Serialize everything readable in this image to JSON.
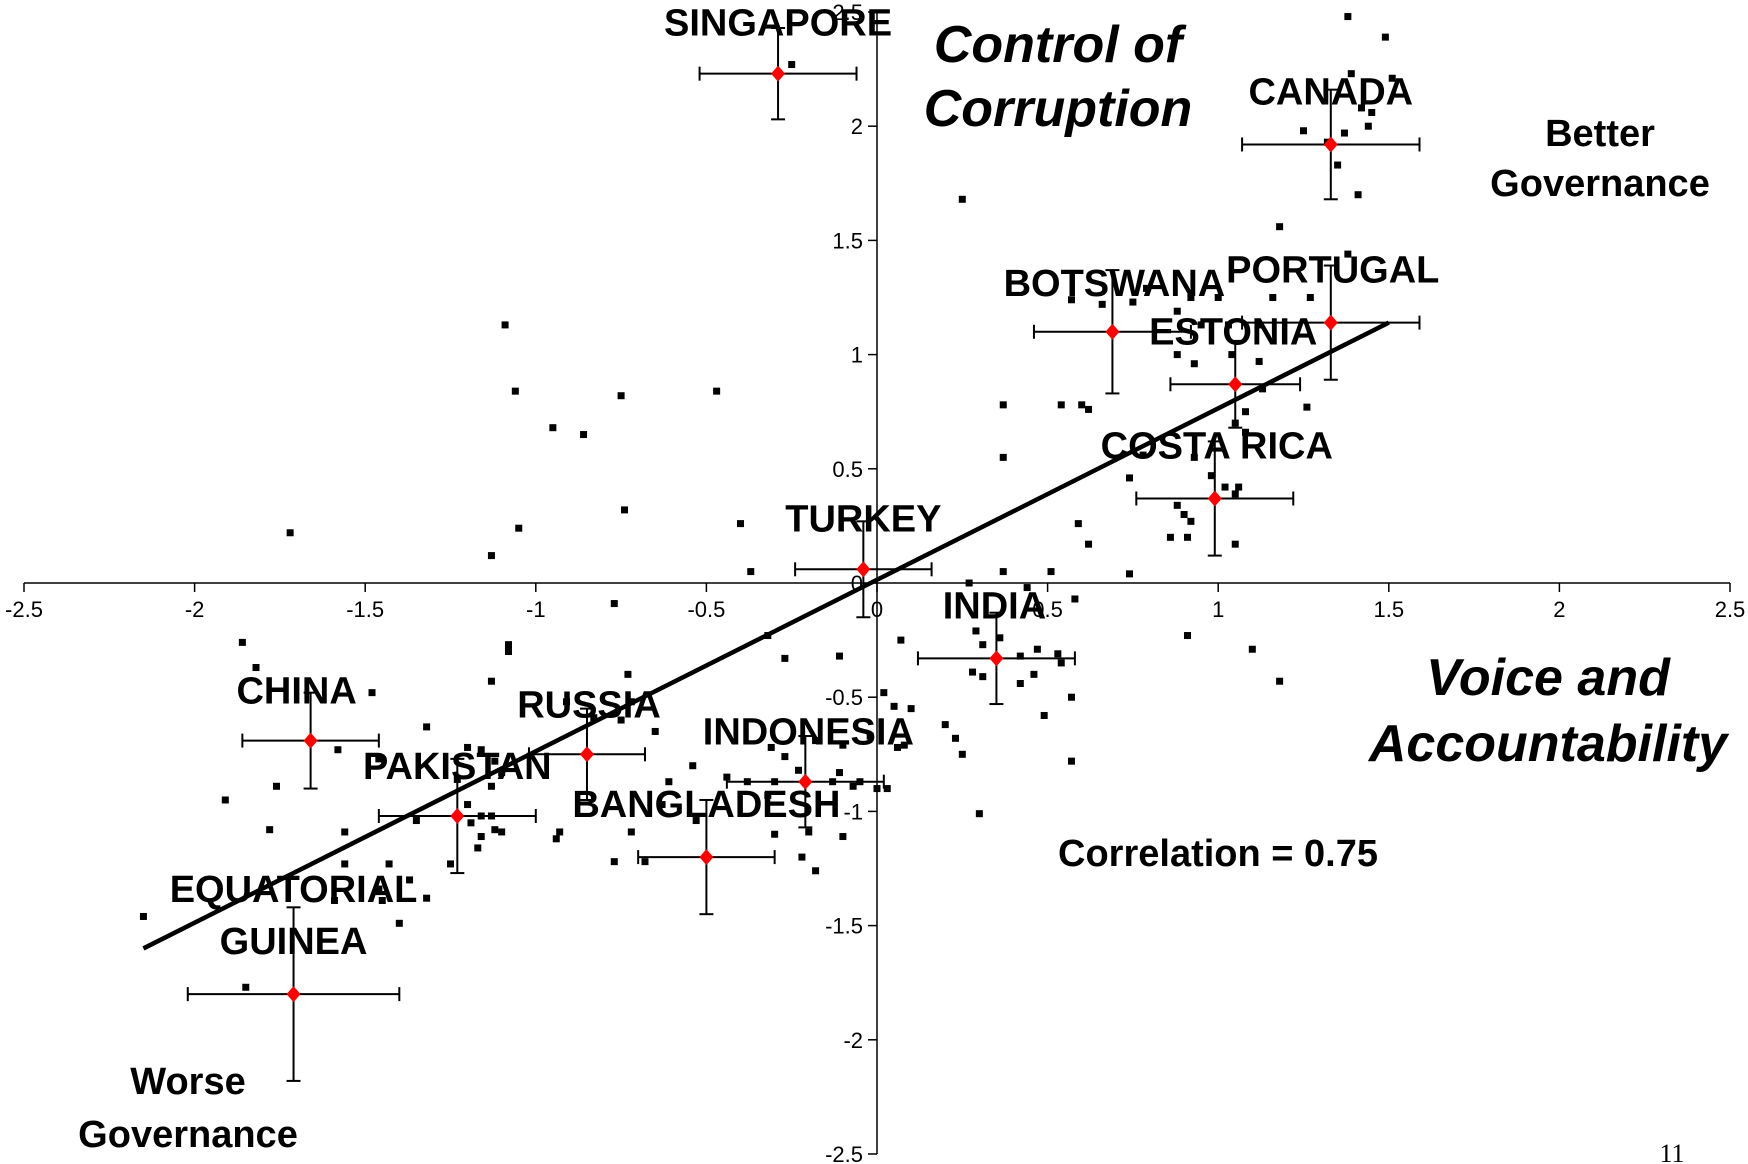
{
  "chart_data": {
    "type": "scatter",
    "x_axis_title": "Voice and Accountability",
    "y_axis_title": [
      "Control of",
      "Corruption"
    ],
    "xlim": [
      -2.5,
      2.5
    ],
    "ylim": [
      -2.5,
      2.5
    ],
    "x_ticks": [
      "-2.5",
      "-2",
      "-1.5",
      "-1",
      "-0.5",
      "0",
      "0.5",
      "1",
      "1.5",
      "2",
      "2.5"
    ],
    "y_ticks": [
      "-2.5",
      "-2",
      "-1.5",
      "-1",
      "-0.5",
      "0",
      "0.5",
      "1",
      "1.5",
      "2",
      "2.5"
    ],
    "annotations": {
      "better": [
        "Better",
        "Governance"
      ],
      "worse": [
        "Worse",
        "Governance"
      ],
      "correlation": "Correlation = 0.75"
    },
    "page_number": "11",
    "trendline": {
      "x": [
        -2.15,
        1.5
      ],
      "y": [
        -1.6,
        1.14
      ]
    },
    "highlighted": [
      {
        "label": "SINGAPORE",
        "x": -0.29,
        "y": 2.23,
        "xerr": 0.23,
        "yerr": 0.2
      },
      {
        "label": "CANADA",
        "x": 1.33,
        "y": 1.92,
        "xerr": 0.26,
        "yerr": 0.24
      },
      {
        "label": "BOTSWANA",
        "x": 0.69,
        "y": 1.1,
        "xerr": 0.23,
        "yerr": 0.27
      },
      {
        "label": "PORTUGAL",
        "x": 1.33,
        "y": 1.14,
        "xerr": 0.26,
        "yerr": 0.25
      },
      {
        "label": "ESTONIA",
        "x": 1.05,
        "y": 0.87,
        "xerr": 0.19,
        "yerr": 0.19
      },
      {
        "label": "COSTA RICA",
        "x": 0.99,
        "y": 0.37,
        "xerr": 0.23,
        "yerr": 0.25
      },
      {
        "label": "TURKEY",
        "x": -0.04,
        "y": 0.06,
        "xerr": 0.2,
        "yerr": 0.21
      },
      {
        "label": "INDIA",
        "x": 0.35,
        "y": -0.33,
        "xerr": 0.23,
        "yerr": 0.2
      },
      {
        "label": "CHINA",
        "x": -1.66,
        "y": -0.69,
        "xerr": 0.2,
        "yerr": 0.21
      },
      {
        "label": "RUSSIA",
        "x": -0.85,
        "y": -0.75,
        "xerr": 0.17,
        "yerr": 0.2
      },
      {
        "label": "INDONESIA",
        "x": -0.21,
        "y": -0.87,
        "xerr": 0.23,
        "yerr": 0.2
      },
      {
        "label": "PAKISTAN",
        "x": -1.23,
        "y": -1.02,
        "xerr": 0.23,
        "yerr": 0.25
      },
      {
        "label": "BANGLADESH",
        "x": -0.5,
        "y": -1.2,
        "xerr": 0.2,
        "yerr": 0.25
      },
      {
        "label": "EQUATORIAL GUINEA",
        "x": -1.71,
        "y": -1.8,
        "xerr": 0.31,
        "yerr": 0.38
      }
    ],
    "points": [
      [
        1.38,
        2.48
      ],
      [
        1.49,
        2.39
      ],
      [
        1.51,
        2.21
      ],
      [
        1.39,
        2.23
      ],
      [
        1.42,
        2.08
      ],
      [
        1.45,
        2.06
      ],
      [
        1.44,
        2.0
      ],
      [
        1.37,
        1.97
      ],
      [
        1.25,
        1.98
      ],
      [
        1.32,
        1.93
      ],
      [
        1.35,
        1.83
      ],
      [
        1.41,
        1.7
      ],
      [
        -0.25,
        2.27
      ],
      [
        0.25,
        1.68
      ],
      [
        1.18,
        1.56
      ],
      [
        1.38,
        1.44
      ],
      [
        0.57,
        1.24
      ],
      [
        0.66,
        1.22
      ],
      [
        0.75,
        1.23
      ],
      [
        0.79,
        1.29
      ],
      [
        0.92,
        1.25
      ],
      [
        1.0,
        1.25
      ],
      [
        1.16,
        1.25
      ],
      [
        1.27,
        1.25
      ],
      [
        0.88,
        1.19
      ],
      [
        0.95,
        1.13
      ],
      [
        1.03,
        1.13
      ],
      [
        1.12,
        1.13
      ],
      [
        0.88,
        1.0
      ],
      [
        0.93,
        0.96
      ],
      [
        1.04,
        1.0
      ],
      [
        1.12,
        0.97
      ],
      [
        1.08,
        0.75
      ],
      [
        1.13,
        0.85
      ],
      [
        1.26,
        0.77
      ],
      [
        1.05,
        0.7
      ],
      [
        1.08,
        0.66
      ],
      [
        0.37,
        0.78
      ],
      [
        0.54,
        0.78
      ],
      [
        0.6,
        0.78
      ],
      [
        0.62,
        0.76
      ],
      [
        0.37,
        0.55
      ],
      [
        0.74,
        0.46
      ],
      [
        0.78,
        0.56
      ],
      [
        0.93,
        0.55
      ],
      [
        0.98,
        0.47
      ],
      [
        1.02,
        0.42
      ],
      [
        1.06,
        0.42
      ],
      [
        1.05,
        0.39
      ],
      [
        0.88,
        0.34
      ],
      [
        0.9,
        0.3
      ],
      [
        0.92,
        0.27
      ],
      [
        0.91,
        0.2
      ],
      [
        0.86,
        0.2
      ],
      [
        1.05,
        0.17
      ],
      [
        0.59,
        0.26
      ],
      [
        0.62,
        0.17
      ],
      [
        0.74,
        0.04
      ],
      [
        -1.09,
        1.13
      ],
      [
        -1.06,
        0.84
      ],
      [
        -0.75,
        0.82
      ],
      [
        -0.47,
        0.84
      ],
      [
        -0.95,
        0.68
      ],
      [
        -0.86,
        0.65
      ],
      [
        -1.05,
        0.24
      ],
      [
        -1.72,
        0.22
      ],
      [
        -1.13,
        0.12
      ],
      [
        -0.74,
        0.32
      ],
      [
        -0.4,
        0.26
      ],
      [
        -0.37,
        0.05
      ],
      [
        0.27,
        0.0
      ],
      [
        0.37,
        0.05
      ],
      [
        0.44,
        -0.02
      ],
      [
        0.51,
        0.05
      ],
      [
        0.58,
        -0.07
      ],
      [
        -0.77,
        -0.09
      ],
      [
        -0.32,
        -0.23
      ],
      [
        -0.27,
        -0.33
      ],
      [
        -0.11,
        -0.32
      ],
      [
        0.07,
        -0.25
      ],
      [
        0.29,
        -0.21
      ],
      [
        0.31,
        -0.27
      ],
      [
        0.36,
        -0.24
      ],
      [
        0.42,
        -0.32
      ],
      [
        0.47,
        -0.29
      ],
      [
        0.53,
        -0.31
      ],
      [
        0.54,
        -0.35
      ],
      [
        0.46,
        -0.4
      ],
      [
        0.42,
        -0.44
      ],
      [
        0.31,
        -0.41
      ],
      [
        0.28,
        -0.39
      ],
      [
        0.57,
        -0.5
      ],
      [
        0.49,
        -0.58
      ],
      [
        0.57,
        -0.78
      ],
      [
        0.3,
        -1.01
      ],
      [
        0.91,
        -0.23
      ],
      [
        1.1,
        -0.29
      ],
      [
        1.18,
        -0.43
      ],
      [
        -1.86,
        -0.26
      ],
      [
        -1.82,
        -0.37
      ],
      [
        -1.08,
        -0.27
      ],
      [
        -1.08,
        -0.3
      ],
      [
        -1.13,
        -0.43
      ],
      [
        -1.48,
        -0.48
      ],
      [
        -0.73,
        -0.4
      ],
      [
        -0.91,
        -0.52
      ],
      [
        -0.83,
        -0.59
      ],
      [
        -0.75,
        -0.6
      ],
      [
        -0.72,
        -0.52
      ],
      [
        -0.65,
        -0.65
      ],
      [
        -1.32,
        -0.63
      ],
      [
        -1.46,
        -0.77
      ],
      [
        -1.58,
        -0.73
      ],
      [
        -1.2,
        -0.72
      ],
      [
        -1.16,
        -0.73
      ],
      [
        -1.12,
        -0.78
      ],
      [
        -1.1,
        -0.83
      ],
      [
        -1.13,
        -0.89
      ],
      [
        -1.23,
        -0.86
      ],
      [
        -1.2,
        -0.97
      ],
      [
        -1.16,
        -1.02
      ],
      [
        -1.13,
        -1.02
      ],
      [
        -1.12,
        -1.08
      ],
      [
        -1.1,
        -1.09
      ],
      [
        -1.16,
        -1.11
      ],
      [
        -1.19,
        -1.05
      ],
      [
        -1.35,
        -1.04
      ],
      [
        -1.56,
        -1.09
      ],
      [
        -1.91,
        -0.95
      ],
      [
        -1.76,
        -0.89
      ],
      [
        -1.78,
        -1.08
      ],
      [
        -1.43,
        -1.23
      ],
      [
        -1.25,
        -1.23
      ],
      [
        -1.45,
        -1.39
      ],
      [
        -1.4,
        -1.49
      ],
      [
        -1.32,
        -1.38
      ],
      [
        -1.17,
        -1.16
      ],
      [
        -0.94,
        -1.12
      ],
      [
        -0.93,
        -1.09
      ],
      [
        -0.72,
        -1.09
      ],
      [
        -0.63,
        -0.97
      ],
      [
        -0.61,
        -0.87
      ],
      [
        -0.54,
        -0.8
      ],
      [
        -0.44,
        -0.85
      ],
      [
        -0.38,
        -0.87
      ],
      [
        -0.3,
        -0.87
      ],
      [
        -0.23,
        -0.82
      ],
      [
        -0.13,
        -0.87
      ],
      [
        -0.05,
        -0.87
      ],
      [
        0.0,
        -0.9
      ],
      [
        0.03,
        -0.9
      ],
      [
        0.06,
        -0.72
      ],
      [
        0.1,
        -0.55
      ],
      [
        0.2,
        -0.62
      ],
      [
        0.23,
        -0.68
      ],
      [
        0.25,
        -0.75
      ],
      [
        0.02,
        -0.48
      ],
      [
        0.05,
        -0.54
      ],
      [
        -0.18,
        -0.69
      ],
      [
        -0.31,
        -0.72
      ],
      [
        -0.27,
        -0.76
      ],
      [
        -0.1,
        -0.71
      ],
      [
        -0.02,
        -0.67
      ],
      [
        -0.11,
        -0.83
      ],
      [
        0.08,
        -0.71
      ],
      [
        -0.77,
        -1.22
      ],
      [
        -0.68,
        -1.22
      ],
      [
        -0.53,
        -1.04
      ],
      [
        -0.32,
        -0.93
      ],
      [
        -0.3,
        -1.1
      ],
      [
        -0.22,
        -1.2
      ],
      [
        -0.18,
        -1.26
      ],
      [
        -0.2,
        -1.09
      ],
      [
        -0.1,
        -1.11
      ],
      [
        -0.07,
        -0.89
      ],
      [
        -2.15,
        -1.46
      ],
      [
        -1.85,
        -1.77
      ],
      [
        -1.59,
        -1.39
      ],
      [
        -1.56,
        -1.23
      ],
      [
        -1.37,
        -1.3
      ],
      [
        -1.46,
        -1.34
      ]
    ]
  }
}
